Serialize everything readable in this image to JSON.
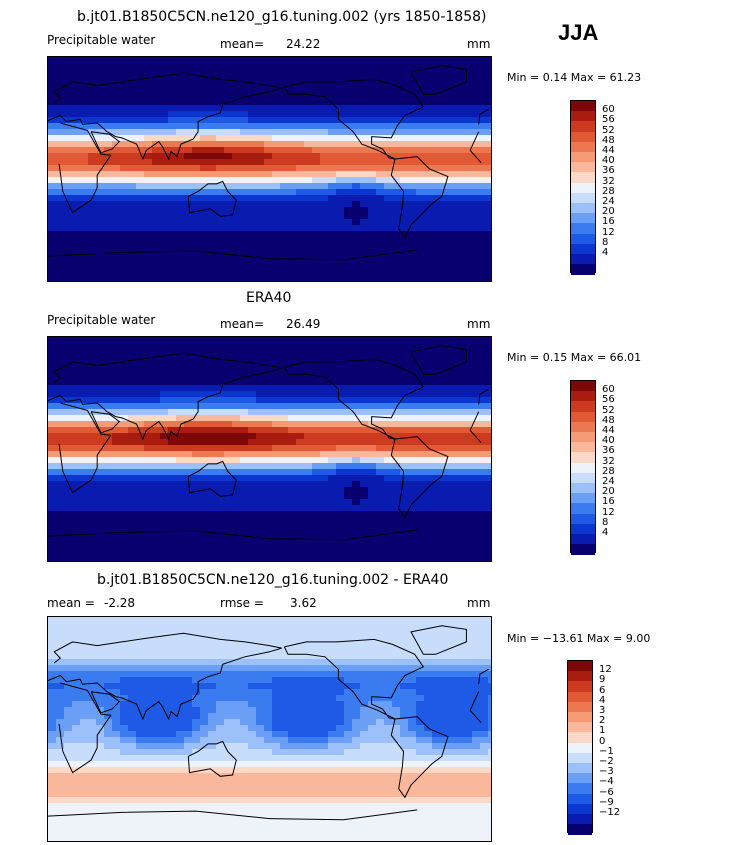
{
  "season": "JJA",
  "colors": {
    "levels": [
      "#08006e",
      "#0a1bb0",
      "#0b36d0",
      "#1e5ae6",
      "#3b7bf0",
      "#6a9ff5",
      "#9cc0fa",
      "#c8dcfc",
      "#eef3fa",
      "#fcd8c6",
      "#f9b79b",
      "#f49a74",
      "#ec7851",
      "#e25a35",
      "#cc3b1f",
      "#a81d10",
      "#7d0808"
    ]
  },
  "panels": [
    {
      "title": "b.jt01.B1850C5CN.ne120_g16.tuning.002 (yrs 1850-1858)",
      "var_label": "Precipitable water",
      "stat_label": "mean=",
      "stat_value": "24.22",
      "units": "mm",
      "minmax": "Min =    0.14  Max =   61.23",
      "colorbar_labels": [
        "60",
        "56",
        "52",
        "48",
        "44",
        "40",
        "36",
        "32",
        "28",
        "24",
        "20",
        "16",
        "12",
        "8",
        "4"
      ]
    },
    {
      "title": "ERA40",
      "var_label": "Precipitable water",
      "stat_label": "mean=",
      "stat_value": "26.49",
      "units": "mm",
      "minmax": "Min =    0.15  Max =   66.01",
      "colorbar_labels": [
        "60",
        "56",
        "52",
        "48",
        "44",
        "40",
        "36",
        "32",
        "28",
        "24",
        "20",
        "16",
        "12",
        "8",
        "4"
      ]
    },
    {
      "title": "b.jt01.B1850C5CN.ne120_g16.tuning.002 - ERA40",
      "var_label": "mean =",
      "stat_label": "",
      "stat_value": "-2.28",
      "rmse_label": "rmse =",
      "rmse_value": "3.62",
      "units": "mm",
      "minmax": "Min = −13.61  Max =    9.00",
      "colorbar_labels": [
        "12",
        "9",
        "6",
        "4",
        "3",
        "2",
        "1",
        "0",
        "−1",
        "−2",
        "−3",
        "−4",
        "−6",
        "−9",
        "−12"
      ]
    }
  ]
}
